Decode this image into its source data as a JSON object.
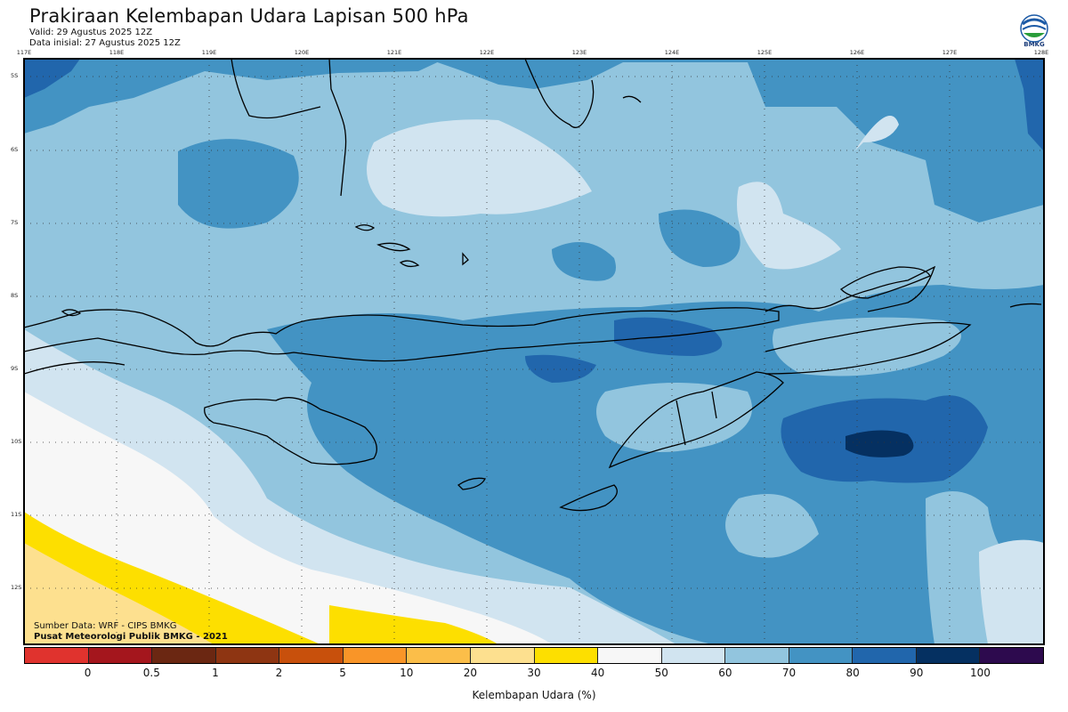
{
  "header": {
    "title": "Prakiraan Kelembapan Udara Lapisan 500 hPa",
    "valid": "Valid: 29 Agustus 2025 12Z",
    "initial": "Data inisial: 27 Agustus 2025 12Z",
    "logo_text": "BMKG"
  },
  "axes": {
    "lon_labels": [
      "117E",
      "118E",
      "119E",
      "120E",
      "121E",
      "122E",
      "123E",
      "124E",
      "125E",
      "126E",
      "127E",
      "128E"
    ],
    "lat_labels": [
      "5S",
      "6S",
      "7S",
      "8S",
      "9S",
      "10S",
      "11S",
      "12S"
    ],
    "grid": true
  },
  "footer": {
    "source": "Sumber Data: WRF - CIPS BMKG",
    "credit": "Pusat Meteorologi Publik BMKG - 2021"
  },
  "colorbar": {
    "title": "Kelembapan Udara (%)",
    "ticks": [
      "0",
      "0.5",
      "1",
      "2",
      "5",
      "10",
      "20",
      "30",
      "40",
      "50",
      "60",
      "70",
      "80",
      "90",
      "100"
    ],
    "colors": [
      "#e0332e",
      "#a4161d",
      "#6b2712",
      "#8e3512",
      "#c8500c",
      "#f99528",
      "#fbbe49",
      "#fde08f",
      "#fddf00",
      "#f7f7f7",
      "#d1e4f0",
      "#92c5de",
      "#4393c3",
      "#2166ac",
      "#053061",
      "#2d0a4e"
    ]
  },
  "legend_levels": {
    "humidity_colors": {
      "30-40": "#fde08f",
      "40-50": "#fddf00",
      "50-60": "#f7f7f7",
      "60-70": "#d1e4f0",
      "70-80": "#92c5de",
      "80-90": "#4393c3",
      "90-100": "#2166ac",
      "100+": "#053061"
    }
  }
}
